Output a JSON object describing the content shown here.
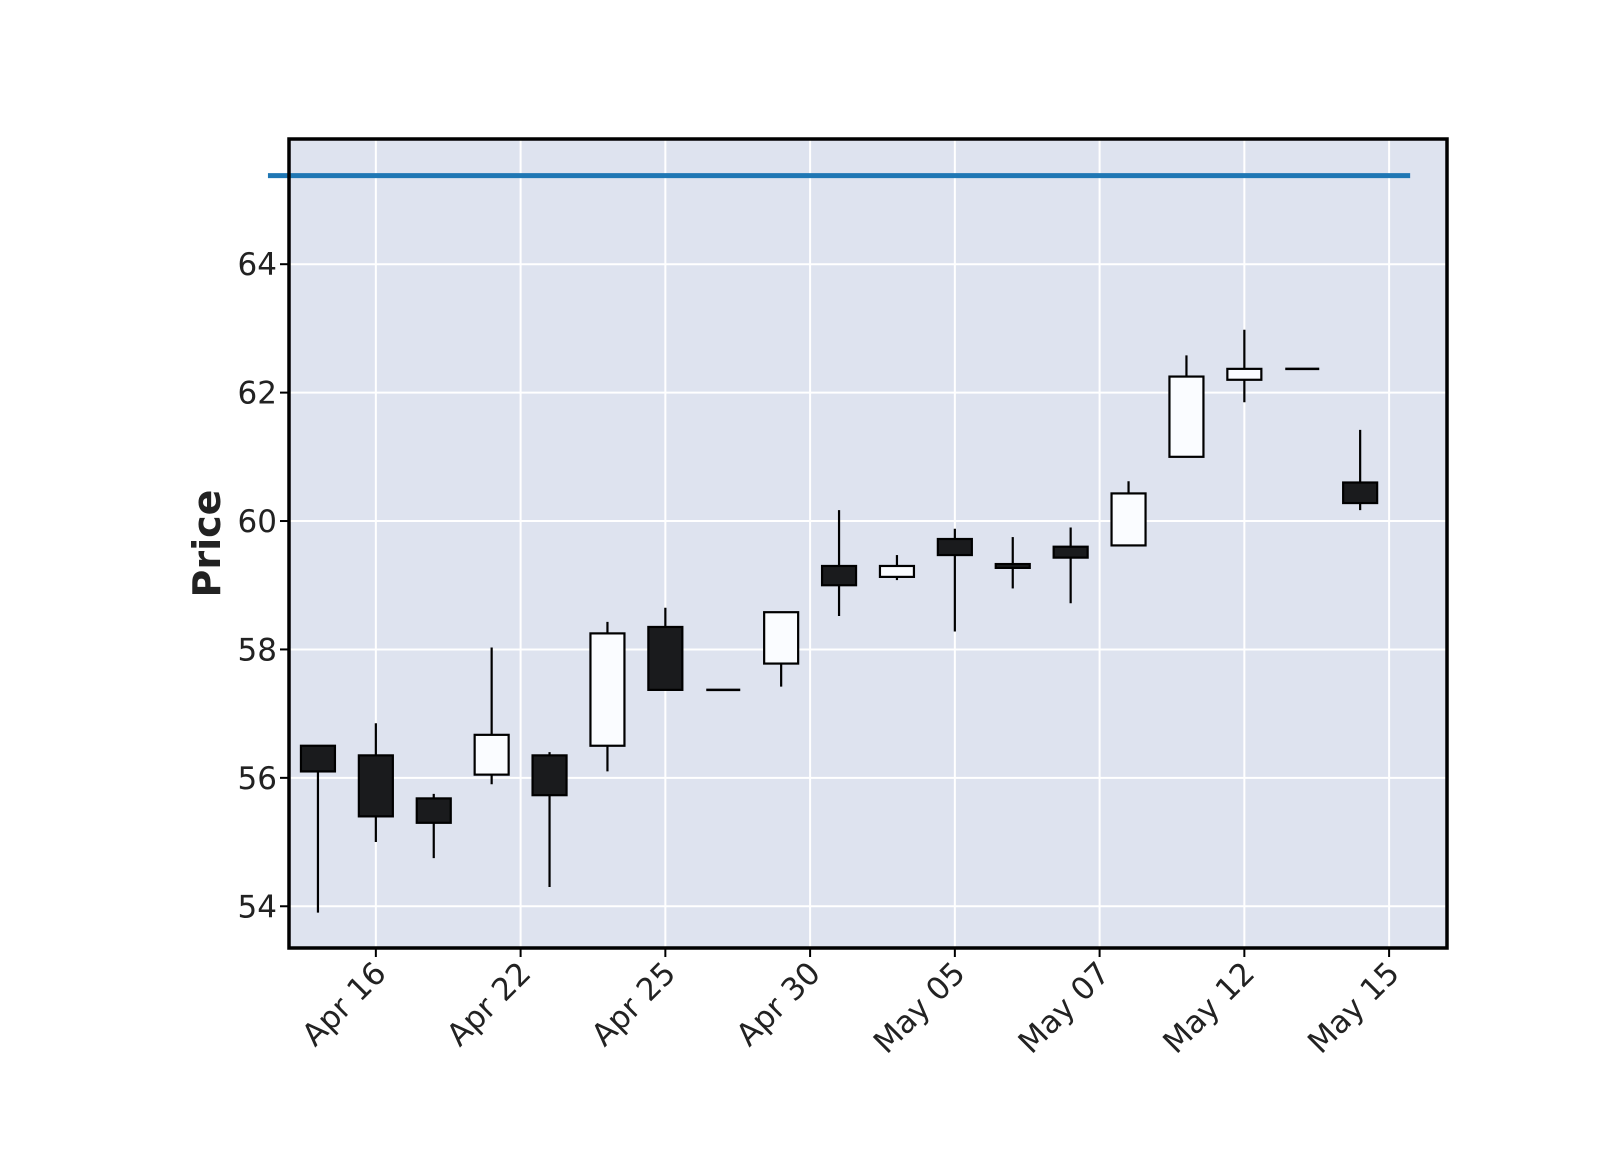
{
  "chart_data": {
    "type": "candlestick",
    "title": "",
    "xlabel": "",
    "ylabel": "Price",
    "ylim": [
      53.35,
      65.95
    ],
    "yticks": [
      54,
      56,
      58,
      60,
      62,
      64
    ],
    "grid": true,
    "colors": {
      "background": "#dee3ef",
      "grid": "#ffffff",
      "up_fill": "#fafcff",
      "down_fill": "#1a1b1d",
      "edge": "#000000",
      "reference_line": "#1f77b4"
    },
    "x_tick_labels": [
      "Apr 16",
      "Apr 22",
      "Apr 25",
      "Apr 30",
      "May 05",
      "May 07",
      "May 12",
      "May 15"
    ],
    "x_tick_positions": [
      1,
      3.5,
      6,
      8.5,
      11,
      13.5,
      16,
      18.5
    ],
    "candles": [
      {
        "open": 56.5,
        "high": 56.5,
        "low": 53.9,
        "close": 56.1
      },
      {
        "open": 56.35,
        "high": 56.85,
        "low": 55.0,
        "close": 55.4
      },
      {
        "open": 55.68,
        "high": 55.75,
        "low": 54.75,
        "close": 55.3
      },
      {
        "open": 56.05,
        "high": 58.03,
        "low": 55.9,
        "close": 56.67
      },
      {
        "open": 56.35,
        "high": 56.4,
        "low": 54.3,
        "close": 55.73
      },
      {
        "open": 56.5,
        "high": 58.43,
        "low": 56.1,
        "close": 58.25
      },
      {
        "open": 58.35,
        "high": 58.65,
        "low": 57.37,
        "close": 57.37
      },
      {
        "open": 57.37,
        "high": 57.37,
        "low": 57.37,
        "close": 57.37
      },
      {
        "open": 57.78,
        "high": 58.58,
        "low": 57.42,
        "close": 58.58
      },
      {
        "open": 59.3,
        "high": 60.17,
        "low": 58.52,
        "close": 59.0
      },
      {
        "open": 59.13,
        "high": 59.47,
        "low": 59.08,
        "close": 59.3
      },
      {
        "open": 59.72,
        "high": 59.88,
        "low": 58.28,
        "close": 59.47
      },
      {
        "open": 59.33,
        "high": 59.75,
        "low": 58.95,
        "close": 59.27
      },
      {
        "open": 59.6,
        "high": 59.9,
        "low": 58.72,
        "close": 59.43
      },
      {
        "open": 59.62,
        "high": 60.62,
        "low": 59.62,
        "close": 60.43
      },
      {
        "open": 61.0,
        "high": 62.58,
        "low": 61.0,
        "close": 62.25
      },
      {
        "open": 62.2,
        "high": 62.98,
        "low": 61.85,
        "close": 62.37
      },
      {
        "open": 62.37,
        "high": 62.37,
        "low": 62.37,
        "close": 62.37
      },
      {
        "open": 60.6,
        "high": 61.42,
        "low": 60.17,
        "close": 60.28
      }
    ],
    "reference_line": {
      "y": 65.38
    }
  }
}
